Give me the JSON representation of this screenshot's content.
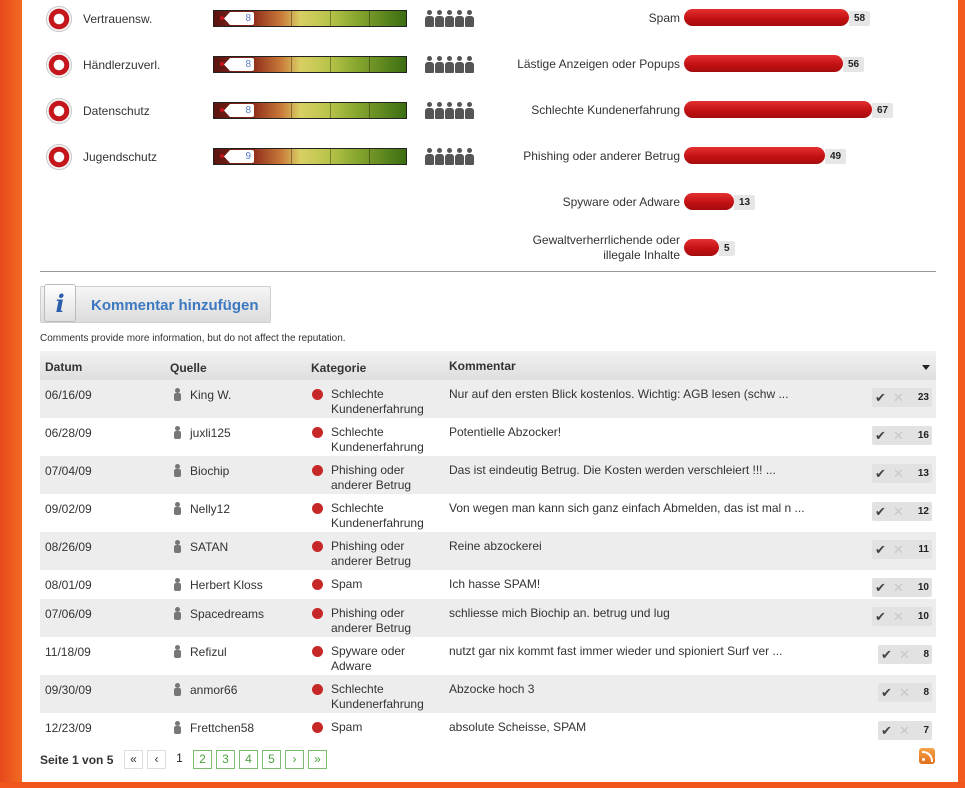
{
  "ratings": [
    {
      "label": "Vertrauensw.",
      "score": "8"
    },
    {
      "label": "Händlerzuverl.",
      "score": "8"
    },
    {
      "label": "Datenschutz",
      "score": "8"
    },
    {
      "label": "Jugendschutz",
      "score": "9"
    }
  ],
  "abuse": [
    {
      "label": "Spam",
      "count": "58"
    },
    {
      "label": "Lästige Anzeigen oder Popups",
      "count": "56"
    },
    {
      "label": "Schlechte Kundenerfahrung",
      "count": "67"
    },
    {
      "label": "Phishing oder anderer Betrug",
      "count": "49"
    },
    {
      "label": "Spyware oder Adware",
      "count": "13"
    },
    {
      "label_line1": "Gewaltverherrlichende oder",
      "label_line2": "illegale Inhalte",
      "count": "5"
    }
  ],
  "add_comment": {
    "label": "Kommentar hinzufügen"
  },
  "comments_note": "Comments provide more information, but do not affect the reputation.",
  "table": {
    "headers": {
      "date": "Datum",
      "source": "Quelle",
      "category": "Kategorie",
      "comment": "Kommentar"
    },
    "rows": [
      {
        "date": "06/16/09",
        "source": "King W.",
        "cat1": "Schlechte",
        "cat2": "Kundenerfahrung",
        "comment": "Nur auf den ersten Blick kostenlos. Wichtig: AGB lesen (schw ...",
        "votes": "23"
      },
      {
        "date": "06/28/09",
        "source": "juxli125",
        "cat1": "Schlechte",
        "cat2": "Kundenerfahrung",
        "comment": "Potentielle Abzocker!",
        "votes": "16"
      },
      {
        "date": "07/04/09",
        "source": "Biochip",
        "cat1": "Phishing oder",
        "cat2": "anderer Betrug",
        "comment": "Das ist eindeutig Betrug. Die Kosten werden verschleiert !!! ...",
        "votes": "13"
      },
      {
        "date": "09/02/09",
        "source": "Nelly12",
        "cat1": "Schlechte",
        "cat2": "Kundenerfahrung",
        "comment": "Von wegen man kann sich ganz einfach Abmelden, das ist mal n ...",
        "votes": "12"
      },
      {
        "date": "08/26/09",
        "source": "SATAN",
        "cat1": "Phishing oder",
        "cat2": "anderer Betrug",
        "comment": "Reine abzockerei",
        "votes": "11"
      },
      {
        "date": "08/01/09",
        "source": "Herbert Kloss",
        "cat1": "Spam",
        "cat2": "",
        "comment": "Ich hasse SPAM!",
        "votes": "10"
      },
      {
        "date": "07/06/09",
        "source": "Spacedreams",
        "cat1": "Phishing oder",
        "cat2": "anderer Betrug",
        "comment": "schliesse mich Biochip an. betrug und lug",
        "votes": "10"
      },
      {
        "date": "11/18/09",
        "source": "Refizul",
        "cat1": "Spyware oder",
        "cat2": "Adware",
        "comment": "nutzt gar nix kommt fast immer wieder und spioniert Surf ver ...",
        "votes": "8"
      },
      {
        "date": "09/30/09",
        "source": "anmor66",
        "cat1": "Schlechte",
        "cat2": "Kundenerfahrung",
        "comment": "Abzocke hoch 3",
        "votes": "8"
      },
      {
        "date": "12/23/09",
        "source": "Frettchen58",
        "cat1": "Spam",
        "cat2": "",
        "comment": "absolute Scheisse, SPAM",
        "votes": "7"
      }
    ]
  },
  "pagination": {
    "info_prefix": "Seite ",
    "current": "1",
    "info_mid": " von ",
    "total": "5",
    "first": "«",
    "prev": "‹",
    "next": "›",
    "last": "»",
    "pages": [
      "1",
      "2",
      "3",
      "4",
      "5"
    ]
  },
  "colors": {
    "accent": "#f26a22",
    "bar_red": "#c00f12",
    "link_blue": "#3b78c0",
    "page_green": "#4aa53d"
  }
}
